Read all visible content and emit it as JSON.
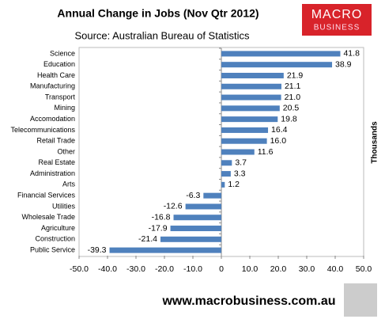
{
  "chart_data": {
    "type": "bar",
    "orientation": "horizontal",
    "title": "Annual Change in Jobs (Nov Qtr 2012)",
    "subtitle": "Source: Australian Bureau of Statistics",
    "x_label": "Thousands",
    "categories": [
      "Science",
      "Education",
      "Health Care",
      "Manufacturing",
      "Transport",
      "Mining",
      "Accomodation",
      "Telecommunications",
      "Retail Trade",
      "Other",
      "Real Estate",
      "Administration",
      "Arts",
      "Financial Services",
      "Utilities",
      "Wholesale Trade",
      "Agriculture",
      "Construction",
      "Public Service"
    ],
    "values": [
      41.8,
      38.9,
      21.9,
      21.1,
      21.0,
      20.5,
      19.8,
      16.4,
      16.0,
      11.6,
      3.7,
      3.3,
      1.2,
      -6.3,
      -12.6,
      -16.8,
      -17.9,
      -21.4,
      -39.3
    ],
    "value_labels": [
      "41.8",
      "38.9",
      "21.9",
      "21.1",
      "21.0",
      "20.5",
      "19.8",
      "16.4",
      "16.0",
      "11.6",
      "3.7",
      "3.3",
      "1.2",
      "-6.3",
      "-12.6",
      "-16.8",
      "-17.9",
      "-21.4",
      "-39.3"
    ],
    "color": "#4f81bd",
    "xlim": [
      -50,
      50
    ],
    "xticks": [
      {
        "value": -50,
        "label": "-50.0"
      },
      {
        "value": -40,
        "label": "-40.0"
      },
      {
        "value": -30,
        "label": "-30.0"
      },
      {
        "value": -20,
        "label": "-20.0"
      },
      {
        "value": -10,
        "label": "-10.0"
      },
      0,
      {
        "value": 10,
        "label": "10.0"
      },
      {
        "value": 20,
        "label": "20.0"
      },
      {
        "value": 30,
        "label": "30.0"
      },
      {
        "value": 40,
        "label": "40.0"
      },
      {
        "value": 50,
        "label": "50.0"
      }
    ],
    "grid": false
  },
  "branding": {
    "logo_top": "MACRO",
    "logo_bottom": "BUSINESS",
    "footer": "www.macrobusiness.com.au"
  }
}
